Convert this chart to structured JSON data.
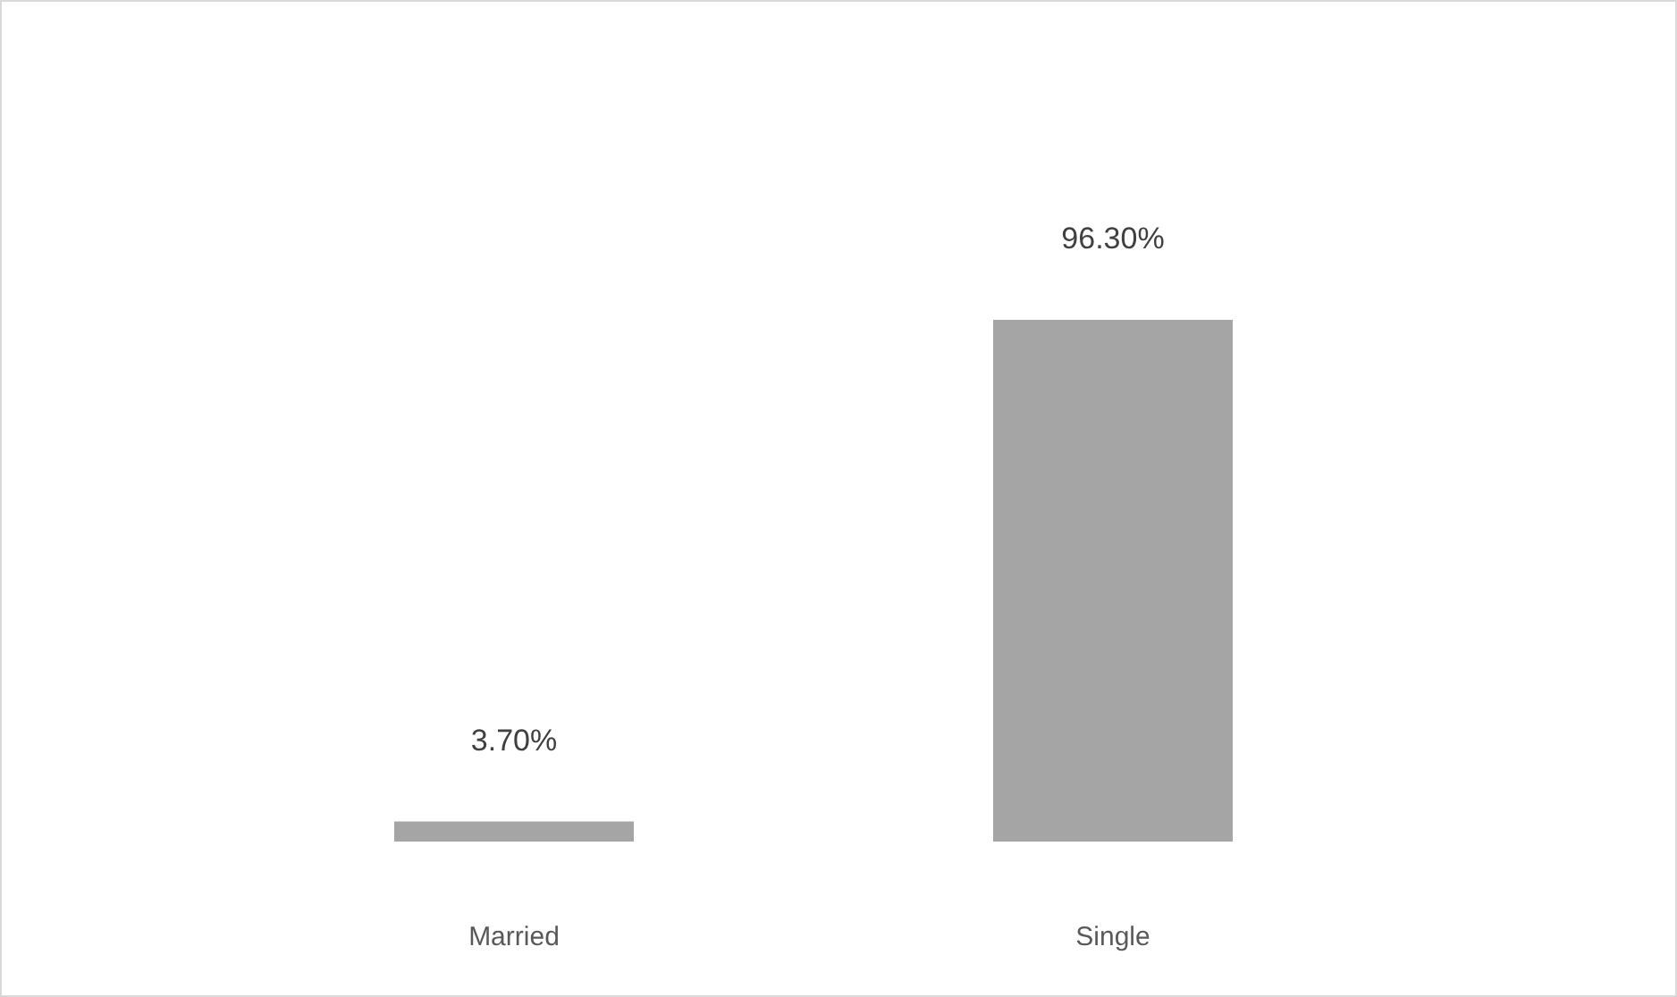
{
  "chart_data": {
    "type": "bar",
    "categories": [
      "Married",
      "Single"
    ],
    "values": [
      3.7,
      96.3
    ],
    "value_labels": [
      "3.70%",
      "96.30%"
    ],
    "color": "#a5a5a5"
  }
}
